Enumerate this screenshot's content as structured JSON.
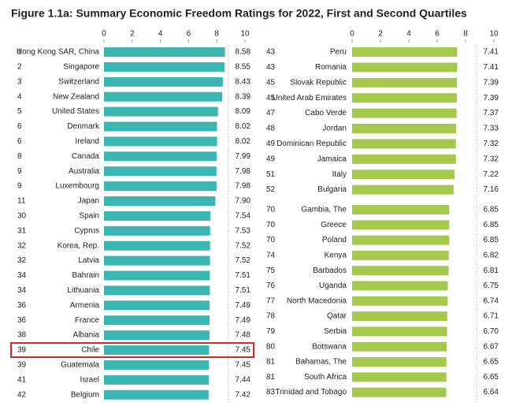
{
  "title": "Figure 1.1a: Summary Economic Freedom Ratings for 2022, First and Second Quartiles",
  "chart_data": [
    {
      "type": "bar",
      "orientation": "horizontal",
      "color": "#3cb6b1",
      "xlim": [
        0,
        10
      ],
      "xticks": [
        0,
        2,
        4,
        6,
        8,
        10
      ],
      "highlight": 20,
      "ranks": [
        1,
        2,
        3,
        4,
        5,
        6,
        6,
        8,
        9,
        9,
        11,
        30,
        31,
        32,
        32,
        34,
        34,
        36,
        36,
        38,
        39,
        39,
        41,
        42
      ],
      "categories": [
        "Hong Kong SAR, China",
        "Singapore",
        "Switzerland",
        "New Zealand",
        "United States",
        "Denmark",
        "Ireland",
        "Canada",
        "Australia",
        "Luxembourg",
        "Japan",
        "Spain",
        "Cyprus",
        "Korea, Rep.",
        "Latvia",
        "Bahrain",
        "Lithuania",
        "Armenia",
        "France",
        "Albania",
        "Chile",
        "Guatemala",
        "Israel",
        "Belgium"
      ],
      "values": [
        8.58,
        8.55,
        8.43,
        8.39,
        8.09,
        8.02,
        8.02,
        7.99,
        7.98,
        7.98,
        7.9,
        7.54,
        7.53,
        7.52,
        7.52,
        7.51,
        7.51,
        7.49,
        7.49,
        7.48,
        7.45,
        7.45,
        7.44,
        7.42
      ],
      "value_labels": [
        "8.58",
        "8.55",
        "8.43",
        "8.39",
        "8.09",
        "8.02",
        "8.02",
        "7.99",
        "7.98",
        "7.98",
        "7.90",
        "7.54",
        "7.53",
        "7.52",
        "7.52",
        "7.51",
        "7.51",
        "7.49",
        "7.49",
        "7.48",
        "7.45",
        "7.45",
        "7.44",
        "7.42"
      ]
    },
    {
      "type": "bar",
      "orientation": "horizontal",
      "color": "#a4c94c",
      "xlim": [
        0,
        10
      ],
      "xticks": [
        0,
        2,
        4,
        6,
        8,
        10
      ],
      "ranks": [
        43,
        43,
        45,
        45,
        47,
        48,
        49,
        49,
        51,
        52,
        70,
        70,
        70,
        74,
        75,
        76,
        77,
        78,
        79,
        80,
        81,
        81,
        83
      ],
      "categories": [
        "Peru",
        "Romania",
        "Slovak Republic",
        "United Arab Emirates",
        "Cabo Verde",
        "Jordan",
        "Dominican Republic",
        "Jamaica",
        "Italy",
        "Bulgaria",
        "Gambia, The",
        "Greece",
        "Poland",
        "Kenya",
        "Barbados",
        "Uganda",
        "North Macedonia",
        "Qatar",
        "Serbia",
        "Botswana",
        "Bahamas, The",
        "South Africa",
        "Trinidad and Tobago"
      ],
      "values": [
        7.41,
        7.41,
        7.39,
        7.39,
        7.37,
        7.33,
        7.32,
        7.32,
        7.22,
        7.16,
        6.85,
        6.85,
        6.85,
        6.82,
        6.81,
        6.75,
        6.74,
        6.71,
        6.7,
        6.67,
        6.65,
        6.65,
        6.64
      ],
      "value_labels": [
        "7.41",
        "7.41",
        "7.39",
        "7.39",
        "7.37",
        "7.33",
        "7.32",
        "7.32",
        "7.22",
        "7.16",
        "6.85",
        "6.85",
        "6.85",
        "6.82",
        "6.81",
        "6.75",
        "6.74",
        "6.71",
        "6.70",
        "6.67",
        "6.65",
        "6.65",
        "6.64"
      ]
    }
  ]
}
